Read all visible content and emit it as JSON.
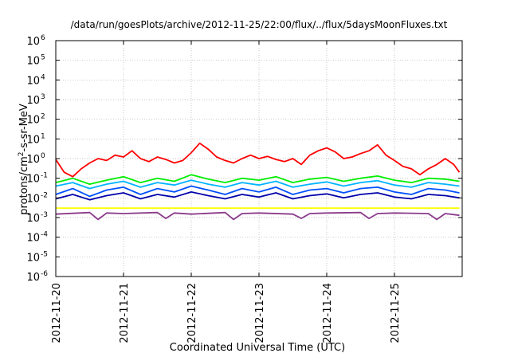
{
  "chart_data": {
    "type": "line",
    "title": "/data/run/goesPlots/archive/2012-11-25/22:00/flux/../flux/5daysMoonFluxes.txt",
    "xlabel": "Coordinated Universal Time (UTC)",
    "ylabel": {
      "before": "protons/cm",
      "superscript": "2",
      "after": "-s-sr-MeV"
    },
    "x_scale": "time",
    "xlim": [
      "2012-11-20",
      "2012-11-26"
    ],
    "x_ticks": [
      "2012-11-20",
      "2012-11-21",
      "2012-11-22",
      "2012-11-23",
      "2012-11-24",
      "2012-11-25"
    ],
    "y_scale": "log",
    "ylim": [
      1e-06,
      1000000.0
    ],
    "y_ticks": [
      {
        "value": 1e-06,
        "base": "10",
        "exp": "-6"
      },
      {
        "value": 1e-05,
        "base": "10",
        "exp": "-5"
      },
      {
        "value": 0.0001,
        "base": "10",
        "exp": "-4"
      },
      {
        "value": 0.001,
        "base": "10",
        "exp": "-3"
      },
      {
        "value": 0.01,
        "base": "10",
        "exp": "-2"
      },
      {
        "value": 0.1,
        "base": "10",
        "exp": "-1"
      },
      {
        "value": 1,
        "base": "10",
        "exp": "0"
      },
      {
        "value": 10,
        "base": "10",
        "exp": "1"
      },
      {
        "value": 100,
        "base": "10",
        "exp": "2"
      },
      {
        "value": 1000,
        "base": "10",
        "exp": "3"
      },
      {
        "value": 10000,
        "base": "10",
        "exp": "4"
      },
      {
        "value": 100000,
        "base": "10",
        "exp": "5"
      },
      {
        "value": 1000000,
        "base": "10",
        "exp": "6"
      }
    ],
    "grid": true,
    "legend": "none",
    "series": [
      {
        "color": "#ff0000",
        "x": [
          "2012-11-20T00:00",
          "2012-11-20T03:00",
          "2012-11-20T06:00",
          "2012-11-20T09:00",
          "2012-11-20T12:00",
          "2012-11-20T15:00",
          "2012-11-20T18:00",
          "2012-11-20T21:00",
          "2012-11-21T00:00",
          "2012-11-21T03:00",
          "2012-11-21T06:00",
          "2012-11-21T09:00",
          "2012-11-21T12:00",
          "2012-11-21T15:00",
          "2012-11-21T18:00",
          "2012-11-21T21:00",
          "2012-11-22T00:00",
          "2012-11-22T03:00",
          "2012-11-22T06:00",
          "2012-11-22T09:00",
          "2012-11-22T12:00",
          "2012-11-22T15:00",
          "2012-11-22T18:00",
          "2012-11-22T21:00",
          "2012-11-23T00:00",
          "2012-11-23T03:00",
          "2012-11-23T06:00",
          "2012-11-23T09:00",
          "2012-11-23T12:00",
          "2012-11-23T15:00",
          "2012-11-23T18:00",
          "2012-11-23T21:00",
          "2012-11-24T00:00",
          "2012-11-24T03:00",
          "2012-11-24T06:00",
          "2012-11-24T09:00",
          "2012-11-24T12:00",
          "2012-11-24T15:00",
          "2012-11-24T18:00",
          "2012-11-24T21:00",
          "2012-11-25T00:00",
          "2012-11-25T03:00",
          "2012-11-25T06:00",
          "2012-11-25T09:00",
          "2012-11-25T12:00",
          "2012-11-25T15:00",
          "2012-11-25T18:00",
          "2012-11-25T21:00",
          "2012-11-25T23:00"
        ],
        "values": [
          0.9,
          0.2,
          0.12,
          0.3,
          0.6,
          1.0,
          0.8,
          1.5,
          1.2,
          2.5,
          1.0,
          0.7,
          1.2,
          0.9,
          0.6,
          0.8,
          2.0,
          6.0,
          3.0,
          1.2,
          0.8,
          0.6,
          1.0,
          1.5,
          1.0,
          1.3,
          0.9,
          0.7,
          1.0,
          0.5,
          1.5,
          2.5,
          3.5,
          2.2,
          1.0,
          1.2,
          1.8,
          2.5,
          5.0,
          1.5,
          0.8,
          0.4,
          0.3,
          0.15,
          0.3,
          0.5,
          1.0,
          0.5,
          0.2
        ]
      },
      {
        "color": "#00ee00",
        "x": [
          "2012-11-20T00:00",
          "2012-11-20T06:00",
          "2012-11-20T12:00",
          "2012-11-20T18:00",
          "2012-11-21T00:00",
          "2012-11-21T06:00",
          "2012-11-21T12:00",
          "2012-11-21T18:00",
          "2012-11-22T00:00",
          "2012-11-22T06:00",
          "2012-11-22T12:00",
          "2012-11-22T18:00",
          "2012-11-23T00:00",
          "2012-11-23T06:00",
          "2012-11-23T12:00",
          "2012-11-23T18:00",
          "2012-11-24T00:00",
          "2012-11-24T06:00",
          "2012-11-24T12:00",
          "2012-11-24T18:00",
          "2012-11-25T00:00",
          "2012-11-25T06:00",
          "2012-11-25T12:00",
          "2012-11-25T18:00",
          "2012-11-25T23:00"
        ],
        "values": [
          0.06,
          0.1,
          0.05,
          0.08,
          0.12,
          0.06,
          0.1,
          0.07,
          0.15,
          0.09,
          0.06,
          0.1,
          0.08,
          0.12,
          0.06,
          0.09,
          0.11,
          0.07,
          0.1,
          0.13,
          0.08,
          0.06,
          0.1,
          0.09,
          0.07
        ]
      },
      {
        "color": "#00b4ff",
        "x": [
          "2012-11-20T00:00",
          "2012-11-20T06:00",
          "2012-11-20T12:00",
          "2012-11-20T18:00",
          "2012-11-21T00:00",
          "2012-11-21T06:00",
          "2012-11-21T12:00",
          "2012-11-21T18:00",
          "2012-11-22T00:00",
          "2012-11-22T06:00",
          "2012-11-22T12:00",
          "2012-11-22T18:00",
          "2012-11-23T00:00",
          "2012-11-23T06:00",
          "2012-11-23T12:00",
          "2012-11-23T18:00",
          "2012-11-24T00:00",
          "2012-11-24T06:00",
          "2012-11-24T12:00",
          "2012-11-24T18:00",
          "2012-11-25T00:00",
          "2012-11-25T06:00",
          "2012-11-25T12:00",
          "2012-11-25T18:00",
          "2012-11-25T23:00"
        ],
        "values": [
          0.04,
          0.06,
          0.03,
          0.05,
          0.07,
          0.035,
          0.06,
          0.045,
          0.08,
          0.05,
          0.035,
          0.06,
          0.045,
          0.07,
          0.035,
          0.05,
          0.065,
          0.04,
          0.06,
          0.075,
          0.045,
          0.035,
          0.06,
          0.05,
          0.04
        ]
      },
      {
        "color": "#0050ff",
        "x": [
          "2012-11-20T00:00",
          "2012-11-20T06:00",
          "2012-11-20T12:00",
          "2012-11-20T18:00",
          "2012-11-21T00:00",
          "2012-11-21T06:00",
          "2012-11-21T12:00",
          "2012-11-21T18:00",
          "2012-11-22T00:00",
          "2012-11-22T06:00",
          "2012-11-22T12:00",
          "2012-11-22T18:00",
          "2012-11-23T00:00",
          "2012-11-23T06:00",
          "2012-11-23T12:00",
          "2012-11-23T18:00",
          "2012-11-24T00:00",
          "2012-11-24T06:00",
          "2012-11-24T12:00",
          "2012-11-24T18:00",
          "2012-11-25T00:00",
          "2012-11-25T06:00",
          "2012-11-25T12:00",
          "2012-11-25T18:00",
          "2012-11-25T23:00"
        ],
        "values": [
          0.015,
          0.03,
          0.012,
          0.025,
          0.035,
          0.015,
          0.03,
          0.02,
          0.04,
          0.025,
          0.015,
          0.03,
          0.02,
          0.035,
          0.015,
          0.025,
          0.03,
          0.018,
          0.03,
          0.035,
          0.02,
          0.015,
          0.03,
          0.025,
          0.018
        ]
      },
      {
        "color": "#0000aa",
        "x": [
          "2012-11-20T00:00",
          "2012-11-20T06:00",
          "2012-11-20T12:00",
          "2012-11-20T18:00",
          "2012-11-21T00:00",
          "2012-11-21T06:00",
          "2012-11-21T12:00",
          "2012-11-21T18:00",
          "2012-11-22T00:00",
          "2012-11-22T06:00",
          "2012-11-22T12:00",
          "2012-11-22T18:00",
          "2012-11-23T00:00",
          "2012-11-23T06:00",
          "2012-11-23T12:00",
          "2012-11-23T18:00",
          "2012-11-24T00:00",
          "2012-11-24T06:00",
          "2012-11-24T12:00",
          "2012-11-24T18:00",
          "2012-11-25T00:00",
          "2012-11-25T06:00",
          "2012-11-25T12:00",
          "2012-11-25T18:00",
          "2012-11-25T23:00"
        ],
        "values": [
          0.009,
          0.015,
          0.008,
          0.013,
          0.018,
          0.009,
          0.015,
          0.011,
          0.02,
          0.013,
          0.009,
          0.015,
          0.011,
          0.018,
          0.009,
          0.013,
          0.016,
          0.01,
          0.015,
          0.018,
          0.011,
          0.009,
          0.015,
          0.013,
          0.01
        ]
      },
      {
        "color": "#ffff00",
        "x": [
          "2012-11-20T00:00",
          "2012-11-21T00:00",
          "2012-11-22T00:00",
          "2012-11-23T00:00",
          "2012-11-24T00:00",
          "2012-11-25T00:00",
          "2012-11-25T23:00"
        ],
        "values": [
          0.003,
          0.003,
          0.003,
          0.003,
          0.003,
          0.003,
          0.003
        ]
      },
      {
        "color": "#8b3a8b",
        "x": [
          "2012-11-20T00:00",
          "2012-11-20T12:00",
          "2012-11-20T15:00",
          "2012-11-20T18:00",
          "2012-11-21T00:00",
          "2012-11-21T12:00",
          "2012-11-21T15:00",
          "2012-11-21T18:00",
          "2012-11-22T00:00",
          "2012-11-22T12:00",
          "2012-11-22T15:00",
          "2012-11-22T18:00",
          "2012-11-23T00:00",
          "2012-11-23T12:00",
          "2012-11-23T15:00",
          "2012-11-23T18:00",
          "2012-11-24T00:00",
          "2012-11-24T12:00",
          "2012-11-24T15:00",
          "2012-11-24T18:00",
          "2012-11-25T00:00",
          "2012-11-25T12:00",
          "2012-11-25T15:00",
          "2012-11-25T18:00",
          "2012-11-25T23:00"
        ],
        "values": [
          0.0015,
          0.0018,
          0.0008,
          0.0017,
          0.0016,
          0.0018,
          0.0009,
          0.0017,
          0.0015,
          0.0018,
          0.0008,
          0.0016,
          0.0017,
          0.0015,
          0.0009,
          0.0016,
          0.0017,
          0.0018,
          0.0009,
          0.0016,
          0.0017,
          0.0016,
          0.0008,
          0.0016,
          0.0013
        ]
      }
    ]
  }
}
